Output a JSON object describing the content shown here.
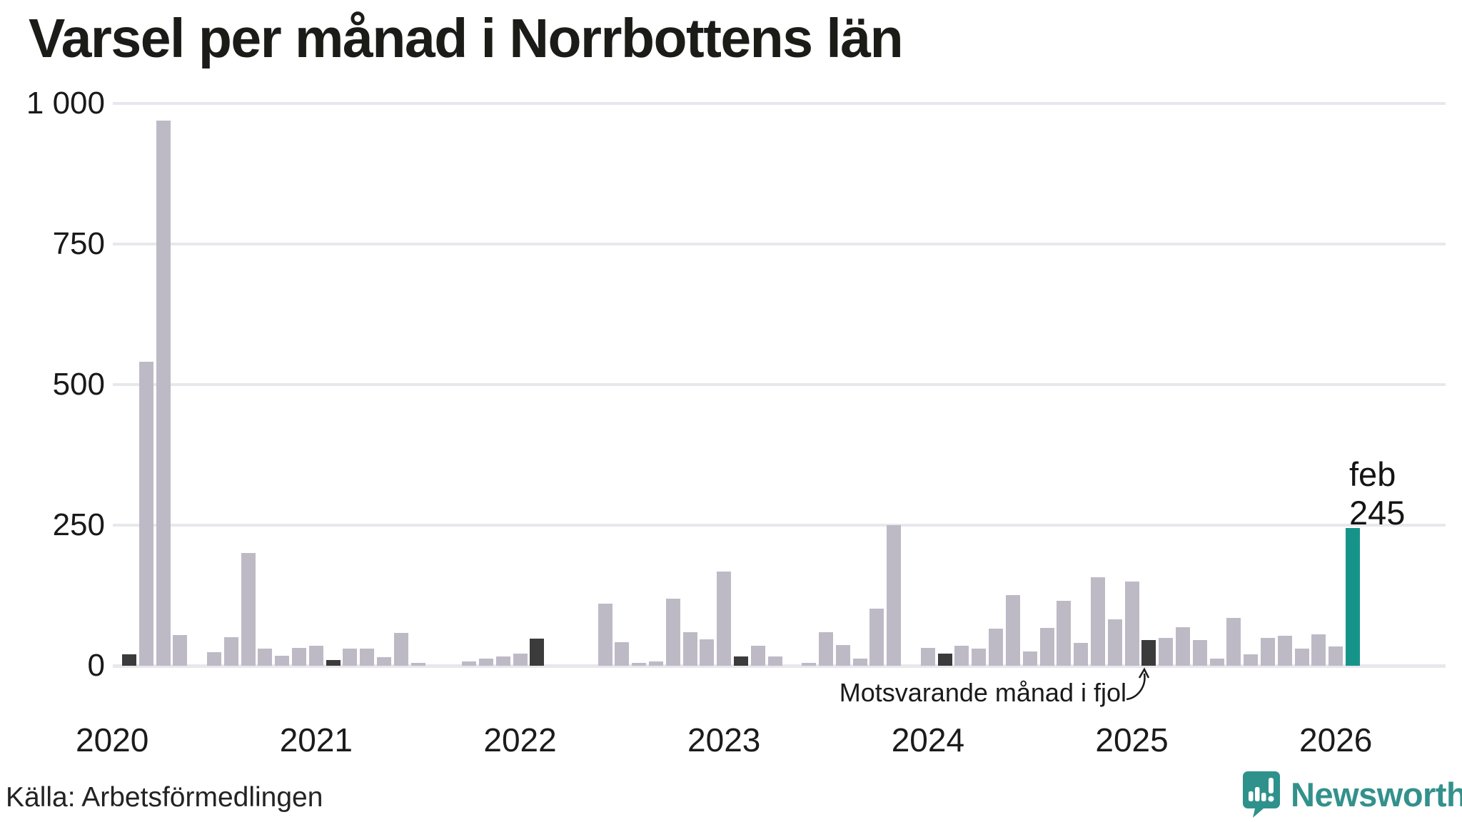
{
  "title": "Varsel per månad i Norrbottens län",
  "source": "Källa: Arbetsförmedlingen",
  "logo": {
    "text": "Newsworthy"
  },
  "colors": {
    "bar_gray": "#bdbac6",
    "bar_dark": "#3b3b3b",
    "bar_current_teal": "#17948a",
    "logo_teal": "#2f918b",
    "gridline": "#e8e7ec",
    "text": "#1a1a1a"
  },
  "chart_data": {
    "type": "bar",
    "title": "Varsel per månad i Norrbottens län",
    "xlabel": "",
    "ylabel": "",
    "ylim": [
      0,
      1000
    ],
    "yticks": [
      0,
      250,
      500,
      750,
      1000
    ],
    "ytick_labels": [
      "0",
      "250",
      "500",
      "750",
      "1 000"
    ],
    "year_ticks": [
      "2020",
      "2021",
      "2022",
      "2023",
      "2024",
      "2025",
      "2026"
    ],
    "grid": "horizontal",
    "legend_position": "none",
    "annotation": "Motsvarande månad i fjol",
    "annotation_points_to": "2025-02",
    "current_label": {
      "line1": "feb",
      "line2": "245"
    },
    "bar_colors": {
      "n": "#bdbac6",
      "d": "#3b3b3b",
      "c": "#17948a"
    },
    "bars": [
      {
        "m": "2020-02",
        "v": 20,
        "k": "d"
      },
      {
        "m": "2020-03",
        "v": 540,
        "k": "n"
      },
      {
        "m": "2020-04",
        "v": 970,
        "k": "n"
      },
      {
        "m": "2020-05",
        "v": 55,
        "k": "n"
      },
      {
        "m": "2020-06",
        "v": 0,
        "k": "n"
      },
      {
        "m": "2020-07",
        "v": 24,
        "k": "n"
      },
      {
        "m": "2020-08",
        "v": 51,
        "k": "n"
      },
      {
        "m": "2020-09",
        "v": 200,
        "k": "n"
      },
      {
        "m": "2020-10",
        "v": 31,
        "k": "n"
      },
      {
        "m": "2020-11",
        "v": 18,
        "k": "n"
      },
      {
        "m": "2020-12",
        "v": 32,
        "k": "n"
      },
      {
        "m": "2021-01",
        "v": 36,
        "k": "n"
      },
      {
        "m": "2021-02",
        "v": 10,
        "k": "d"
      },
      {
        "m": "2021-03",
        "v": 31,
        "k": "n"
      },
      {
        "m": "2021-04",
        "v": 31,
        "k": "n"
      },
      {
        "m": "2021-05",
        "v": 15,
        "k": "n"
      },
      {
        "m": "2021-06",
        "v": 59,
        "k": "n"
      },
      {
        "m": "2021-07",
        "v": 5,
        "k": "n"
      },
      {
        "m": "2021-08",
        "v": 0,
        "k": "n"
      },
      {
        "m": "2021-09",
        "v": 0,
        "k": "n"
      },
      {
        "m": "2021-10",
        "v": 7,
        "k": "n"
      },
      {
        "m": "2021-11",
        "v": 13,
        "k": "n"
      },
      {
        "m": "2021-12",
        "v": 16,
        "k": "n"
      },
      {
        "m": "2022-01",
        "v": 21,
        "k": "n"
      },
      {
        "m": "2022-02",
        "v": 48,
        "k": "d"
      },
      {
        "m": "2022-03",
        "v": 0,
        "k": "n"
      },
      {
        "m": "2022-04",
        "v": 0,
        "k": "n"
      },
      {
        "m": "2022-05",
        "v": 0,
        "k": "n"
      },
      {
        "m": "2022-06",
        "v": 110,
        "k": "n"
      },
      {
        "m": "2022-07",
        "v": 42,
        "k": "n"
      },
      {
        "m": "2022-08",
        "v": 5,
        "k": "n"
      },
      {
        "m": "2022-09",
        "v": 8,
        "k": "n"
      },
      {
        "m": "2022-10",
        "v": 119,
        "k": "n"
      },
      {
        "m": "2022-11",
        "v": 60,
        "k": "n"
      },
      {
        "m": "2022-12",
        "v": 47,
        "k": "n"
      },
      {
        "m": "2023-01",
        "v": 168,
        "k": "n"
      },
      {
        "m": "2023-02",
        "v": 17,
        "k": "d"
      },
      {
        "m": "2023-03",
        "v": 35,
        "k": "n"
      },
      {
        "m": "2023-04",
        "v": 16,
        "k": "n"
      },
      {
        "m": "2023-05",
        "v": 0,
        "k": "n"
      },
      {
        "m": "2023-06",
        "v": 5,
        "k": "n"
      },
      {
        "m": "2023-07",
        "v": 60,
        "k": "n"
      },
      {
        "m": "2023-08",
        "v": 37,
        "k": "n"
      },
      {
        "m": "2023-09",
        "v": 13,
        "k": "n"
      },
      {
        "m": "2023-10",
        "v": 101,
        "k": "n"
      },
      {
        "m": "2023-11",
        "v": 250,
        "k": "n"
      },
      {
        "m": "2023-12",
        "v": 0,
        "k": "n"
      },
      {
        "m": "2024-01",
        "v": 32,
        "k": "n"
      },
      {
        "m": "2024-02",
        "v": 21,
        "k": "d"
      },
      {
        "m": "2024-03",
        "v": 35,
        "k": "n"
      },
      {
        "m": "2024-04",
        "v": 30,
        "k": "n"
      },
      {
        "m": "2024-05",
        "v": 66,
        "k": "n"
      },
      {
        "m": "2024-06",
        "v": 126,
        "k": "n"
      },
      {
        "m": "2024-07",
        "v": 26,
        "k": "n"
      },
      {
        "m": "2024-08",
        "v": 67,
        "k": "n"
      },
      {
        "m": "2024-09",
        "v": 116,
        "k": "n"
      },
      {
        "m": "2024-10",
        "v": 41,
        "k": "n"
      },
      {
        "m": "2024-11",
        "v": 157,
        "k": "n"
      },
      {
        "m": "2024-12",
        "v": 82,
        "k": "n"
      },
      {
        "m": "2025-01",
        "v": 150,
        "k": "n"
      },
      {
        "m": "2025-02",
        "v": 46,
        "k": "d"
      },
      {
        "m": "2025-03",
        "v": 49,
        "k": "n"
      },
      {
        "m": "2025-04",
        "v": 69,
        "k": "n"
      },
      {
        "m": "2025-05",
        "v": 46,
        "k": "n"
      },
      {
        "m": "2025-06",
        "v": 13,
        "k": "n"
      },
      {
        "m": "2025-07",
        "v": 85,
        "k": "n"
      },
      {
        "m": "2025-08",
        "v": 20,
        "k": "n"
      },
      {
        "m": "2025-09",
        "v": 50,
        "k": "n"
      },
      {
        "m": "2025-10",
        "v": 53,
        "k": "n"
      },
      {
        "m": "2025-11",
        "v": 31,
        "k": "n"
      },
      {
        "m": "2025-12",
        "v": 56,
        "k": "n"
      },
      {
        "m": "2026-01",
        "v": 34,
        "k": "n"
      },
      {
        "m": "2026-02",
        "v": 245,
        "k": "c"
      }
    ]
  }
}
